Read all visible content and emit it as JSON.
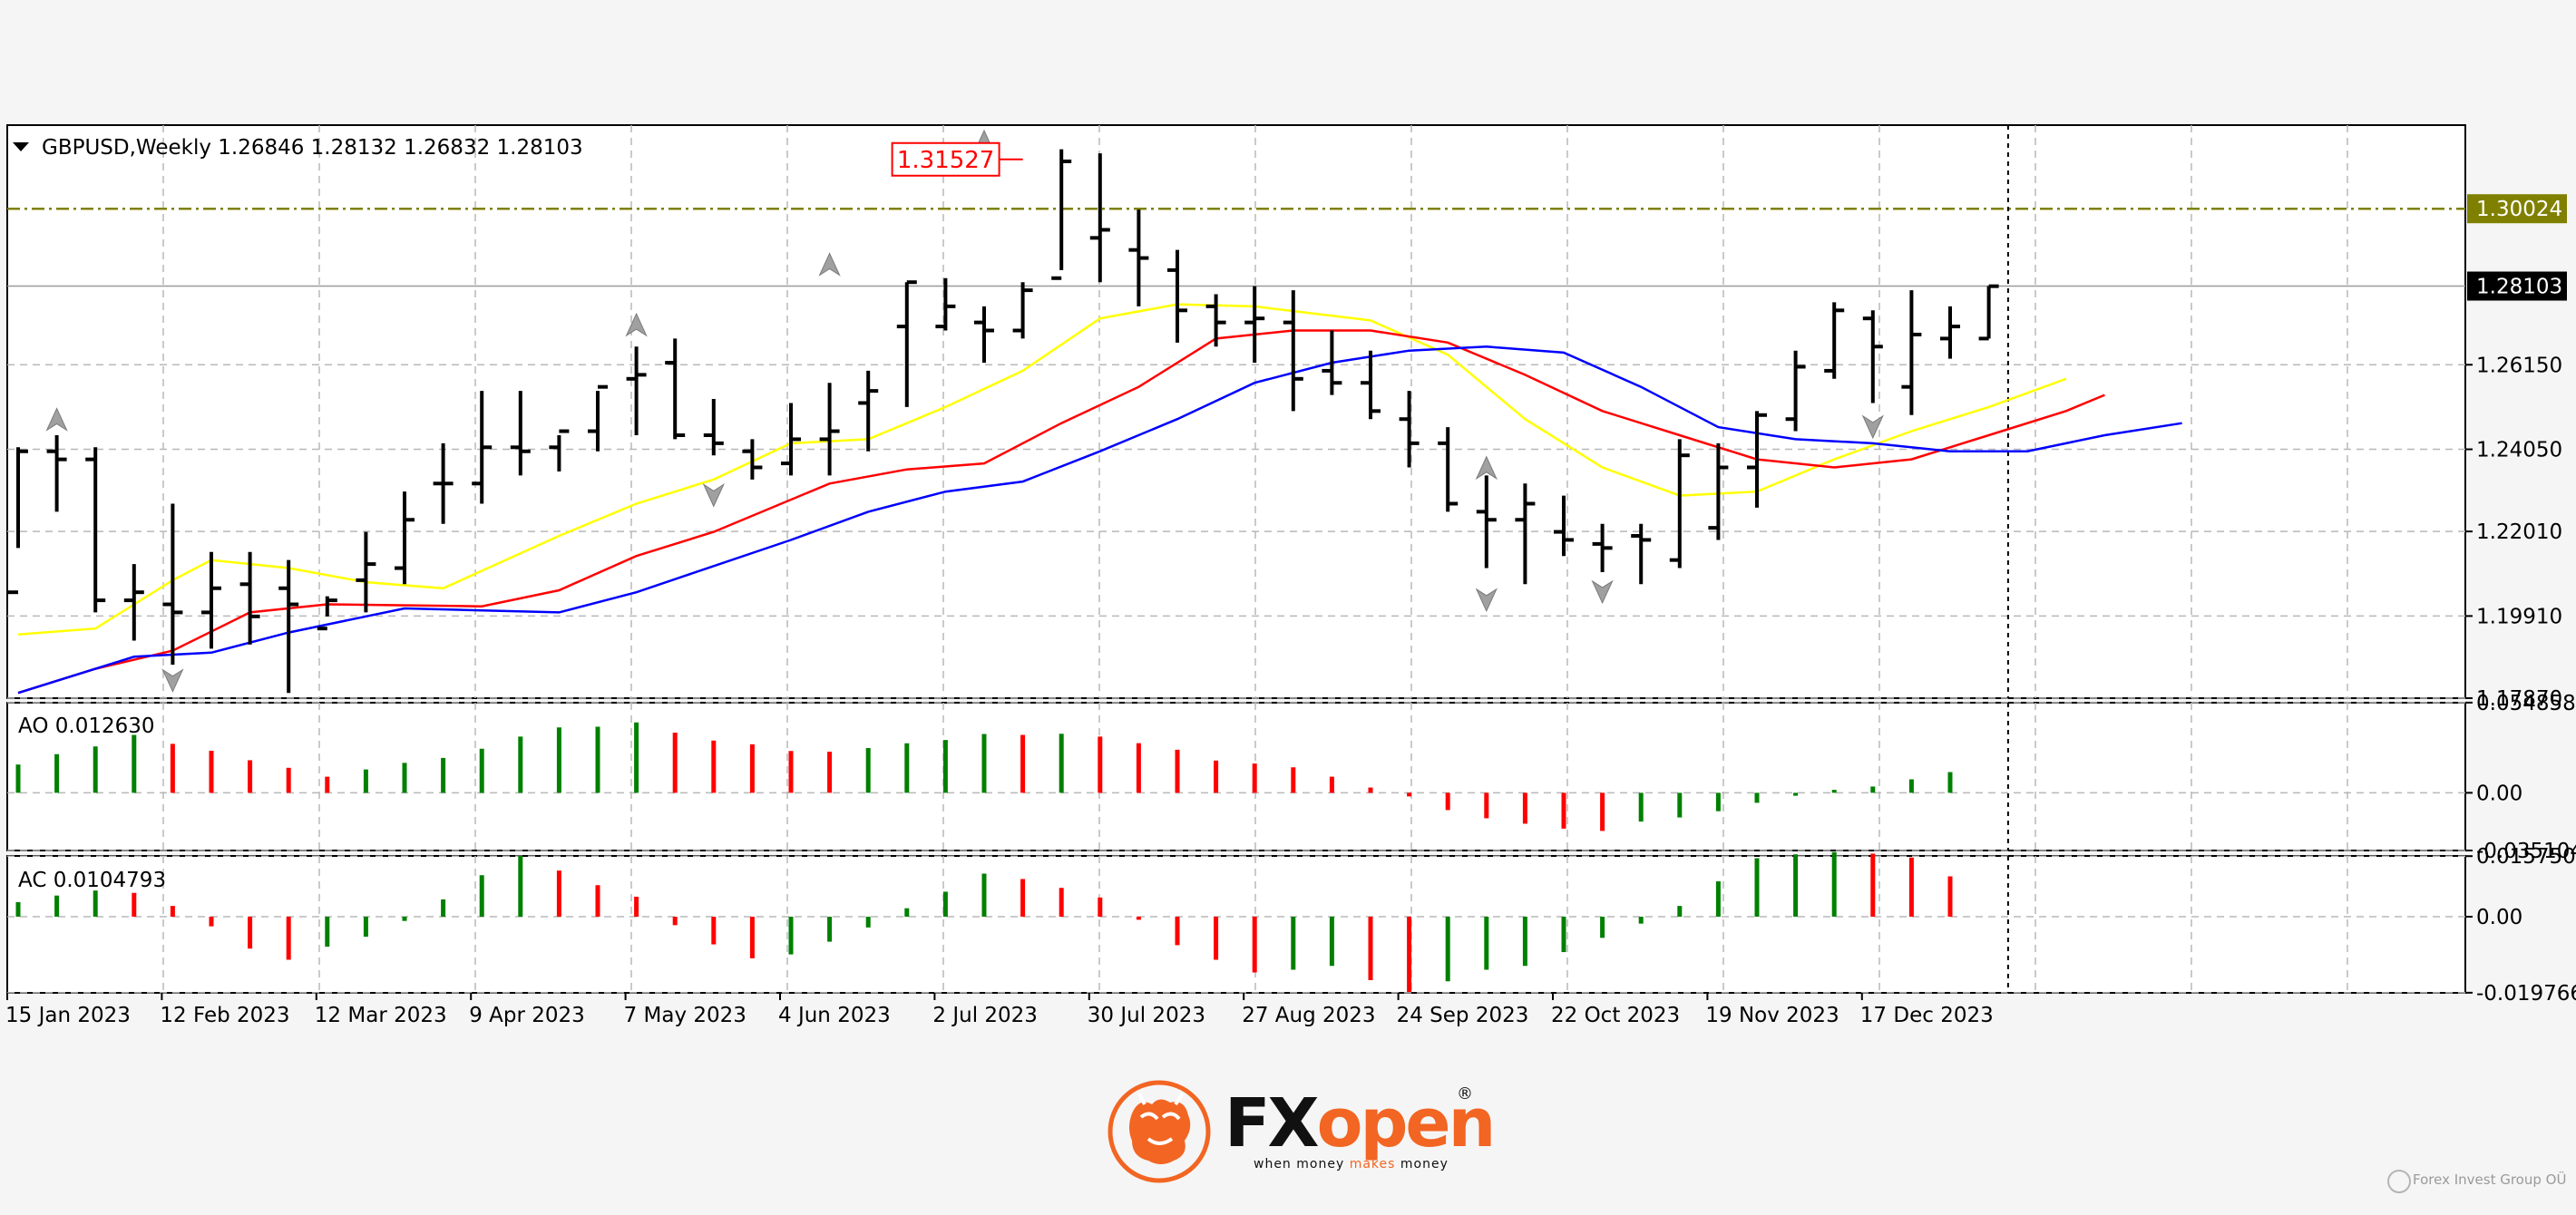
{
  "symbol_header": "GBPUSD,Weekly  1.26846 1.28132 1.26832 1.28103",
  "colors": {
    "bull_bar": "#000000",
    "ao_up": "#008000",
    "ao_down": "#ff0000",
    "ma_yellow": "#ffff00",
    "ma_red": "#ff0000",
    "ma_blue": "#0000ff",
    "level_line": "#808000",
    "current_price_bg": "#000000"
  },
  "chart_data": [
    {
      "type": "ohlc",
      "title": "GBPUSD,Weekly",
      "last_ohlc": {
        "open": 1.26846,
        "high": 1.28132,
        "low": 1.26832,
        "close": 1.28103
      },
      "ylim": [
        1.1787,
        1.321
      ],
      "y_ticks": [
        "1.30024",
        "1.28103",
        "1.26150",
        "1.24050",
        "1.22010",
        "1.19910",
        "1.17870"
      ],
      "x_ticks": [
        "15 Jan 2023",
        "12 Feb 2023",
        "12 Mar 2023",
        "9 Apr 2023",
        "7 May 2023",
        "4 Jun 2023",
        "2 Jul 2023",
        "30 Jul 2023",
        "27 Aug 2023",
        "24 Sep 2023",
        "22 Oct 2023",
        "19 Nov 2023",
        "17 Dec 2023"
      ],
      "x_tick_index": [
        0,
        4,
        8,
        12,
        16,
        20,
        24,
        28,
        32,
        36,
        40,
        44,
        48
      ],
      "annotations": {
        "high_label": "1.31527",
        "level_label": "1.30024",
        "current_label": "1.28103"
      },
      "level_price": 1.30024,
      "vline_index": 51,
      "bars": [
        [
          1.205,
          1.241,
          1.216,
          1.24
        ],
        [
          1.24,
          1.244,
          1.225,
          1.238
        ],
        [
          1.238,
          1.241,
          1.2,
          1.203
        ],
        [
          1.203,
          1.212,
          1.193,
          1.205
        ],
        [
          1.202,
          1.227,
          1.187,
          1.2
        ],
        [
          1.2,
          1.215,
          1.191,
          1.206
        ],
        [
          1.207,
          1.215,
          1.192,
          1.199
        ],
        [
          1.206,
          1.213,
          1.18,
          1.202
        ],
        [
          1.196,
          1.204,
          1.199,
          1.203
        ],
        [
          1.208,
          1.22,
          1.2,
          1.212
        ],
        [
          1.211,
          1.23,
          1.207,
          1.223
        ],
        [
          1.232,
          1.242,
          1.222,
          1.232
        ],
        [
          1.232,
          1.255,
          1.227,
          1.241
        ],
        [
          1.241,
          1.255,
          1.234,
          1.24
        ],
        [
          1.241,
          1.244,
          1.235,
          1.245
        ],
        [
          1.245,
          1.255,
          1.24,
          1.256
        ],
        [
          1.258,
          1.266,
          1.244,
          1.259
        ],
        [
          1.262,
          1.268,
          1.243,
          1.244
        ],
        [
          1.244,
          1.253,
          1.239,
          1.242
        ],
        [
          1.24,
          1.243,
          1.233,
          1.236
        ],
        [
          1.237,
          1.252,
          1.234,
          1.243
        ],
        [
          1.243,
          1.257,
          1.234,
          1.245
        ],
        [
          1.252,
          1.26,
          1.24,
          1.255
        ],
        [
          1.271,
          1.282,
          1.251,
          1.282
        ],
        [
          1.271,
          1.283,
          1.27,
          1.276
        ],
        [
          1.272,
          1.276,
          1.262,
          1.27
        ],
        [
          1.27,
          1.282,
          1.268,
          1.28
        ],
        [
          1.283,
          1.315,
          1.285,
          1.312
        ],
        [
          1.293,
          1.314,
          1.282,
          1.295
        ],
        [
          1.29,
          1.3,
          1.276,
          1.288
        ],
        [
          1.285,
          1.29,
          1.267,
          1.275
        ],
        [
          1.276,
          1.279,
          1.266,
          1.272
        ],
        [
          1.272,
          1.281,
          1.262,
          1.273
        ],
        [
          1.272,
          1.28,
          1.25,
          1.258
        ],
        [
          1.26,
          1.27,
          1.254,
          1.257
        ],
        [
          1.257,
          1.265,
          1.248,
          1.25
        ],
        [
          1.248,
          1.255,
          1.236,
          1.242
        ],
        [
          1.242,
          1.246,
          1.225,
          1.227
        ],
        [
          1.225,
          1.234,
          1.211,
          1.223
        ],
        [
          1.223,
          1.232,
          1.207,
          1.227
        ],
        [
          1.22,
          1.229,
          1.214,
          1.218
        ],
        [
          1.217,
          1.222,
          1.21,
          1.216
        ],
        [
          1.219,
          1.222,
          1.207,
          1.218
        ],
        [
          1.213,
          1.243,
          1.211,
          1.239
        ],
        [
          1.221,
          1.242,
          1.218,
          1.236
        ],
        [
          1.236,
          1.25,
          1.226,
          1.249
        ],
        [
          1.248,
          1.265,
          1.245,
          1.261
        ],
        [
          1.26,
          1.277,
          1.258,
          1.275
        ],
        [
          1.273,
          1.275,
          1.252,
          1.266
        ],
        [
          1.256,
          1.28,
          1.249,
          1.269
        ],
        [
          1.268,
          1.276,
          1.263,
          1.271
        ],
        [
          1.268,
          1.281,
          1.268,
          1.281
        ]
      ],
      "fractals_up": [
        {
          "index": 1,
          "price": 1.2475
        },
        {
          "index": 16,
          "price": 1.271
        },
        {
          "index": 21,
          "price": 1.286
        },
        {
          "index": 25,
          "price": 1.3165
        },
        {
          "index": 38,
          "price": 1.2355
        }
      ],
      "fractals_down": [
        {
          "index": 4,
          "price": 1.1835
        },
        {
          "index": 18,
          "price": 1.2295
        },
        {
          "index": 38,
          "price": 1.2035
        },
        {
          "index": 41,
          "price": 1.2055
        },
        {
          "index": 48,
          "price": 1.2465
        }
      ],
      "ma_yellow": [
        [
          0,
          1.1945
        ],
        [
          2,
          1.196
        ],
        [
          4,
          1.208
        ],
        [
          5,
          1.213
        ],
        [
          7,
          1.211
        ],
        [
          9,
          1.2075
        ],
        [
          11,
          1.206
        ],
        [
          14,
          1.219
        ],
        [
          16,
          1.227
        ],
        [
          18,
          1.233
        ],
        [
          20,
          1.242
        ],
        [
          22,
          1.243
        ],
        [
          24,
          1.251
        ],
        [
          26,
          1.26
        ],
        [
          28,
          1.273
        ],
        [
          30,
          1.2765
        ],
        [
          32,
          1.276
        ],
        [
          35,
          1.2725
        ],
        [
          37,
          1.264
        ],
        [
          39,
          1.248
        ],
        [
          41,
          1.236
        ],
        [
          43,
          1.229
        ],
        [
          45,
          1.23
        ],
        [
          47,
          1.238
        ],
        [
          49,
          1.245
        ],
        [
          51,
          1.251
        ],
        [
          53,
          1.258
        ]
      ],
      "ma_red": [
        [
          0,
          1.18
        ],
        [
          2,
          1.186
        ],
        [
          4,
          1.1905
        ],
        [
          6,
          1.2
        ],
        [
          8,
          1.202
        ],
        [
          12,
          1.2015
        ],
        [
          14,
          1.2055
        ],
        [
          16,
          1.214
        ],
        [
          18,
          1.22
        ],
        [
          21,
          1.232
        ],
        [
          23,
          1.2355
        ],
        [
          25,
          1.237
        ],
        [
          27,
          1.247
        ],
        [
          29,
          1.256
        ],
        [
          31,
          1.268
        ],
        [
          33,
          1.27
        ],
        [
          35,
          1.27
        ],
        [
          37,
          1.267
        ],
        [
          39,
          1.259
        ],
        [
          41,
          1.25
        ],
        [
          43,
          1.244
        ],
        [
          45,
          1.238
        ],
        [
          47,
          1.236
        ],
        [
          49,
          1.238
        ],
        [
          51,
          1.244
        ],
        [
          53,
          1.25
        ],
        [
          54,
          1.254
        ]
      ],
      "ma_blue": [
        [
          0,
          1.18
        ],
        [
          3,
          1.189
        ],
        [
          5,
          1.19
        ],
        [
          7,
          1.195
        ],
        [
          10,
          1.201
        ],
        [
          14,
          1.2
        ],
        [
          16,
          1.205
        ],
        [
          18,
          1.2115
        ],
        [
          20,
          1.218
        ],
        [
          22,
          1.225
        ],
        [
          24,
          1.23
        ],
        [
          26,
          1.2325
        ],
        [
          28,
          1.24
        ],
        [
          30,
          1.248
        ],
        [
          32,
          1.257
        ],
        [
          34,
          1.262
        ],
        [
          36,
          1.265
        ],
        [
          38,
          1.266
        ],
        [
          40,
          1.2645
        ],
        [
          42,
          1.256
        ],
        [
          44,
          1.246
        ],
        [
          46,
          1.243
        ],
        [
          48,
          1.242
        ],
        [
          50,
          1.24
        ],
        [
          52,
          1.24
        ],
        [
          54,
          1.244
        ],
        [
          56,
          1.247
        ]
      ]
    },
    {
      "type": "bar",
      "name": "AO",
      "label": "AO 0.012630",
      "ylim": [
        -0.0351,
        0.0548
      ],
      "y_ticks": [
        "0.054858",
        "0.00",
        "-0.035104"
      ],
      "y_tick_values": [
        0.054858,
        0.0,
        -0.035104
      ],
      "values": [
        0.0172,
        0.0235,
        0.0282,
        0.0352,
        0.0298,
        0.0256,
        0.0198,
        0.0152,
        0.0098,
        0.0142,
        0.0182,
        0.0212,
        0.0268,
        0.0342,
        0.0398,
        0.0402,
        0.0428,
        0.0366,
        0.0318,
        0.0295,
        0.0254,
        0.025,
        0.0272,
        0.0301,
        0.0321,
        0.0358,
        0.0352,
        0.0359,
        0.0342,
        0.0302,
        0.0262,
        0.0196,
        0.0178,
        0.0155,
        0.0098,
        0.0032,
        -0.0022,
        -0.0105,
        -0.0155,
        -0.0188,
        -0.0218,
        -0.0232,
        -0.0175,
        -0.015,
        -0.0112,
        -0.0061,
        -0.0018,
        0.0018,
        0.0038,
        0.0082,
        0.0126
      ],
      "colors": [
        "up",
        "up",
        "up",
        "up",
        "down",
        "down",
        "down",
        "down",
        "down",
        "up",
        "up",
        "up",
        "up",
        "up",
        "up",
        "up",
        "up",
        "down",
        "down",
        "down",
        "down",
        "down",
        "up",
        "up",
        "up",
        "up",
        "down",
        "up",
        "down",
        "down",
        "down",
        "down",
        "down",
        "down",
        "down",
        "down",
        "down",
        "down",
        "down",
        "down",
        "down",
        "down",
        "up",
        "up",
        "up",
        "up",
        "up",
        "up",
        "up",
        "up",
        "up"
      ]
    },
    {
      "type": "bar",
      "name": "AC",
      "label": "AC 0.0104793",
      "ylim": [
        -0.0198,
        0.0158
      ],
      "y_ticks": [
        "0.0157503",
        "0.00",
        "-0.019766"
      ],
      "y_tick_values": [
        0.0157503,
        0.0,
        -0.019766
      ],
      "values": [
        0.0038,
        0.0055,
        0.0068,
        0.0062,
        0.0028,
        -0.0025,
        -0.0083,
        -0.0112,
        -0.0078,
        -0.0052,
        -0.0011,
        0.0045,
        0.0108,
        0.0158,
        0.012,
        0.0082,
        0.0052,
        -0.0022,
        -0.0072,
        -0.0108,
        -0.0098,
        -0.0065,
        -0.0028,
        0.0022,
        0.0065,
        0.0112,
        0.0098,
        0.0075,
        0.005,
        -0.0008,
        -0.0074,
        -0.0112,
        -0.0145,
        -0.0138,
        -0.0128,
        -0.0165,
        -0.0196,
        -0.0168,
        -0.0138,
        -0.0128,
        -0.0092,
        -0.0055,
        -0.0018,
        0.0028,
        0.0092,
        0.0152,
        0.0162,
        0.0168,
        0.0164,
        0.0154,
        0.0105
      ],
      "colors": [
        "up",
        "up",
        "up",
        "down",
        "down",
        "down",
        "down",
        "down",
        "up",
        "up",
        "up",
        "up",
        "up",
        "up",
        "down",
        "down",
        "down",
        "down",
        "down",
        "down",
        "up",
        "up",
        "up",
        "up",
        "up",
        "up",
        "down",
        "down",
        "down",
        "down",
        "down",
        "down",
        "down",
        "up",
        "up",
        "down",
        "down",
        "up",
        "up",
        "up",
        "up",
        "up",
        "up",
        "up",
        "up",
        "up",
        "up",
        "up",
        "down",
        "down",
        "down"
      ]
    }
  ],
  "logo": {
    "fx": "FX",
    "open": "open",
    "reg": "®",
    "tag_left": "when money",
    "tag_mid": "makes",
    "tag_right": "money"
  },
  "footer_note": "Forex Invest Group OÜ"
}
